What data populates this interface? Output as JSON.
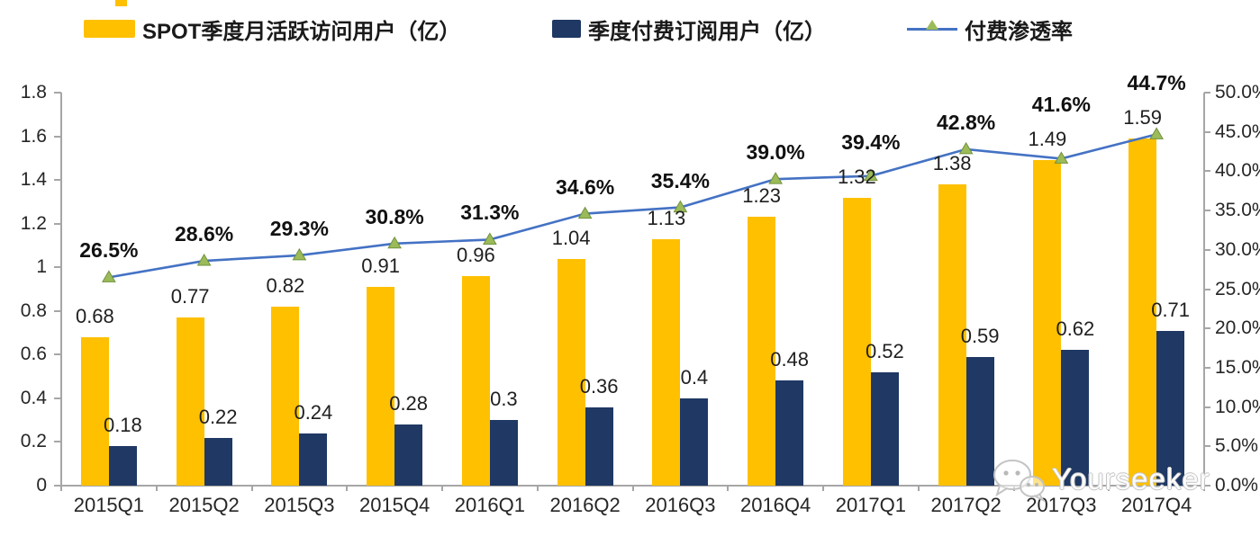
{
  "legend": {
    "items": [
      {
        "label": "SPOT季度月活跃访问用户（亿）",
        "swatch_color": "#FFC000",
        "marker": "bar-swatch"
      },
      {
        "label": "季度付费订阅用户（亿）",
        "swatch_color": "#1F3864",
        "marker": "bar-swatch"
      },
      {
        "label": "付费渗透率",
        "line_color": "#4472C4",
        "marker": "line-triangle",
        "marker_color": "#9BBB59"
      }
    ]
  },
  "watermark": {
    "text": "Yourseeker",
    "icon": "wechat-icon"
  },
  "chart_data": {
    "type": "bar",
    "subtype": "combo-bar-line-dual-axis",
    "categories": [
      "2015Q1",
      "2015Q2",
      "2015Q3",
      "2015Q4",
      "2016Q1",
      "2016Q2",
      "2016Q3",
      "2016Q4",
      "2017Q1",
      "2017Q2",
      "2017Q3",
      "2017Q4"
    ],
    "series": [
      {
        "name": "SPOT季度月活跃访问用户（亿）",
        "type": "bar",
        "axis": "left",
        "color": "#FFC000",
        "values": [
          0.68,
          0.77,
          0.82,
          0.91,
          0.96,
          1.04,
          1.13,
          1.23,
          1.32,
          1.38,
          1.49,
          1.59
        ],
        "labels": [
          "0.68",
          "0.77",
          "0.82",
          "0.91",
          "0.96",
          "1.04",
          "1.13",
          "1.23",
          "1.32",
          "1.38",
          "1.49",
          "1.59"
        ]
      },
      {
        "name": "季度付费订阅用户（亿）",
        "type": "bar",
        "axis": "left",
        "color": "#1F3864",
        "values": [
          0.18,
          0.22,
          0.24,
          0.28,
          0.3,
          0.36,
          0.4,
          0.48,
          0.52,
          0.59,
          0.62,
          0.71
        ],
        "labels": [
          "0.18",
          "0.22",
          "0.24",
          "0.28",
          "0.3",
          "0.36",
          "0.4",
          "0.48",
          "0.52",
          "0.59",
          "0.62",
          "0.71"
        ]
      },
      {
        "name": "付费渗透率",
        "type": "line",
        "axis": "right",
        "color": "#4472C4",
        "marker": "triangle",
        "marker_color": "#9BBB59",
        "values": [
          26.5,
          28.6,
          29.3,
          30.8,
          31.3,
          34.6,
          35.4,
          39.0,
          39.4,
          42.8,
          41.6,
          44.7
        ],
        "labels": [
          "26.5%",
          "28.6%",
          "29.3%",
          "30.8%",
          "31.3%",
          "34.6%",
          "35.4%",
          "39.0%",
          "39.4%",
          "42.8%",
          "41.6%",
          "44.7%"
        ]
      }
    ],
    "left_axis": {
      "min": 0,
      "max": 1.8,
      "ticks": [
        "1.8",
        "1.6",
        "1.4",
        "1.2",
        "1",
        "0.8",
        "0.6",
        "0.4",
        "0.2",
        "0"
      ]
    },
    "right_axis": {
      "min": 0,
      "max": 50.0,
      "ticks": [
        "50.0%",
        "45.0%",
        "40.0%",
        "35.0%",
        "30.0%",
        "25.0%",
        "20.0%",
        "15.0%",
        "10.0%",
        "5.0%",
        "0.0%"
      ]
    },
    "grid": false,
    "legend_position": "top"
  }
}
